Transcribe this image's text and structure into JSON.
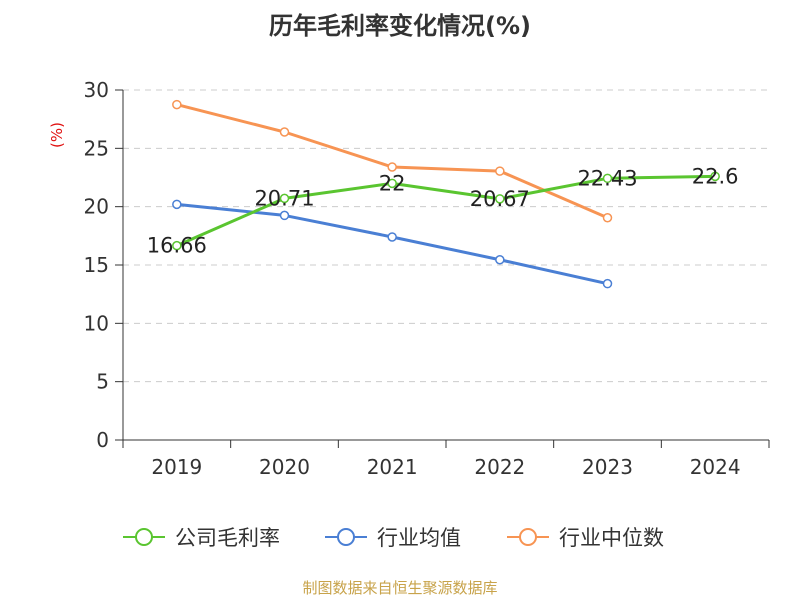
{
  "chart_data": {
    "type": "line",
    "title": "历年毛利率变化情况(%)",
    "unit_label": "(%)",
    "source": "制图数据来自恒生聚源数据库",
    "categories": [
      "2019",
      "2020",
      "2021",
      "2022",
      "2023",
      "2024"
    ],
    "ylim": [
      0,
      30
    ],
    "yticks": [
      0,
      5,
      10,
      15,
      20,
      25,
      30
    ],
    "grid": true,
    "legend_position": "bottom",
    "series": [
      {
        "name": "公司毛利率",
        "color": "#5ac530",
        "values": [
          16.66,
          20.71,
          22,
          20.67,
          22.43,
          22.6
        ],
        "labels": [
          "16.66",
          "20.71",
          "22",
          "20.67",
          "22.43",
          "22.6"
        ]
      },
      {
        "name": "行业均值",
        "color": "#4a7fd4",
        "values": [
          20.2,
          19.25,
          17.4,
          15.45,
          13.4,
          null
        ]
      },
      {
        "name": "行业中位数",
        "color": "#f79453",
        "values": [
          28.75,
          26.4,
          23.4,
          23.05,
          19.05,
          null
        ]
      }
    ]
  }
}
